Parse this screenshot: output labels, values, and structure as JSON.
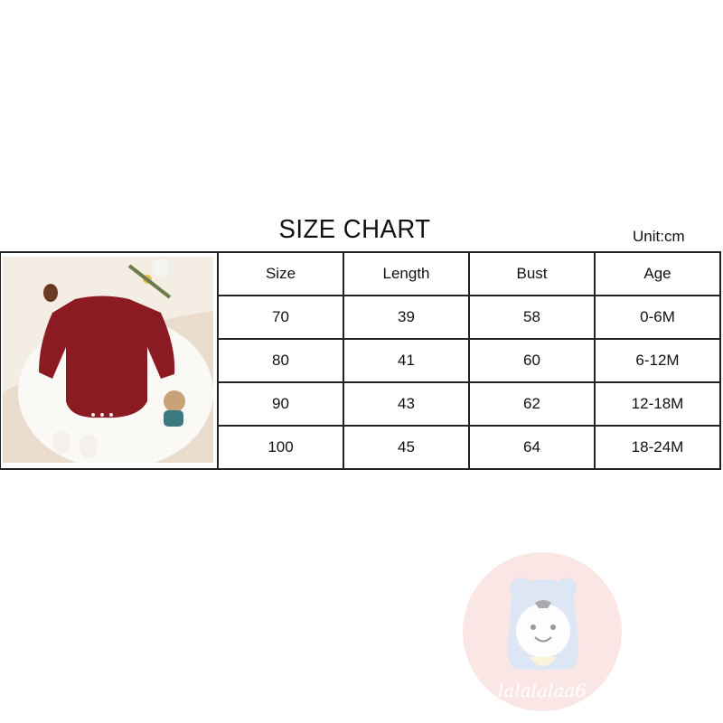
{
  "title": "SIZE CHART",
  "unit": "Unit:cm",
  "table": {
    "headers": [
      "Size",
      "Length",
      "Bust",
      "Age"
    ],
    "rows": [
      [
        "70",
        "39",
        "58",
        "0-6M"
      ],
      [
        "80",
        "41",
        "60",
        "6-12M"
      ],
      [
        "90",
        "43",
        "62",
        "12-18M"
      ],
      [
        "100",
        "45",
        "64",
        "18-24M"
      ]
    ]
  },
  "product_color": "#8b1a22",
  "watermark": {
    "text": "lalalalaa6",
    "color": "#fbe3e3"
  }
}
